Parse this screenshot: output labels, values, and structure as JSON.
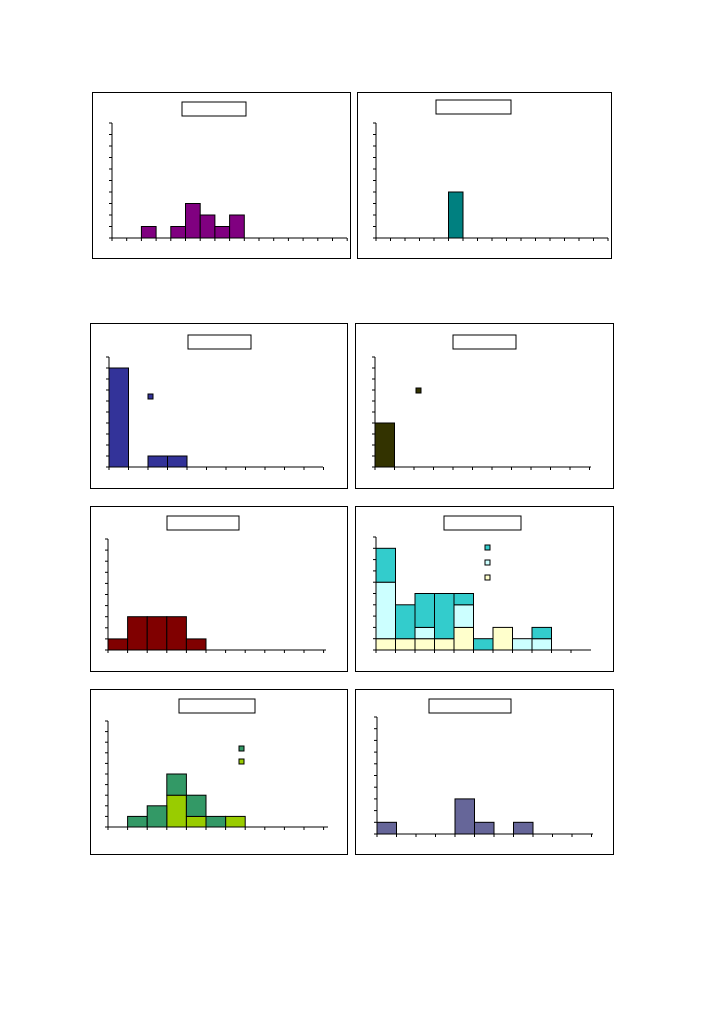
{
  "chart_data": [
    {
      "type": "bar",
      "bins": 16,
      "ylim": [
        0,
        10
      ],
      "series": [
        {
          "color": "#800080",
          "values": [
            0,
            0,
            1,
            0,
            1,
            3,
            2,
            1,
            2,
            0,
            0,
            0,
            0,
            0,
            0,
            0
          ]
        }
      ],
      "title_box": true,
      "legend": false
    },
    {
      "type": "bar",
      "bins": 16,
      "ylim": [
        0,
        10
      ],
      "series": [
        {
          "color": "#008080",
          "values": [
            0,
            0,
            0,
            0,
            0,
            4,
            0,
            0,
            0,
            0,
            0,
            0,
            0,
            0,
            0,
            0
          ]
        }
      ],
      "title_box": true,
      "legend": false
    },
    {
      "type": "bar",
      "bins": 11,
      "ylim": [
        0,
        10
      ],
      "series": [
        {
          "color": "#333399",
          "values": [
            9,
            0,
            1,
            1,
            0,
            0,
            0,
            0,
            0,
            0,
            0
          ]
        }
      ],
      "title_box": true,
      "legend": true,
      "legend_position": "top-left"
    },
    {
      "type": "bar",
      "bins": 11,
      "ylim": [
        0,
        10
      ],
      "series": [
        {
          "color": "#333300",
          "values": [
            4,
            0,
            0,
            0,
            0,
            0,
            0,
            0,
            0,
            0,
            0
          ]
        }
      ],
      "title_box": true,
      "legend": true,
      "legend_position": "top-left"
    },
    {
      "type": "bar",
      "bins": 11,
      "ylim": [
        0,
        10
      ],
      "series": [
        {
          "color": "#800000",
          "values": [
            1,
            3,
            3,
            3,
            1,
            0,
            0,
            0,
            0,
            0,
            0
          ]
        }
      ],
      "title_box": true,
      "legend": false
    },
    {
      "type": "bar",
      "stacked": true,
      "bins": 10,
      "ylim": [
        0,
        10
      ],
      "series": [
        {
          "color": "#FFFFCC",
          "values": [
            1,
            1,
            1,
            1,
            2,
            0,
            2,
            0,
            0,
            0
          ]
        },
        {
          "color": "#CCFFFF",
          "values": [
            5,
            0,
            1,
            0,
            2,
            0,
            0,
            1,
            1,
            0
          ]
        },
        {
          "color": "#33CCCC",
          "values": [
            3,
            3,
            3,
            4,
            1,
            1,
            0,
            0,
            1,
            0
          ]
        }
      ],
      "title_box": true,
      "legend": true,
      "legend_position": "top-right"
    },
    {
      "type": "bar",
      "stacked": true,
      "bins": 11,
      "ylim": [
        0,
        10
      ],
      "series": [
        {
          "color": "#99CC00",
          "values": [
            0,
            0,
            0,
            3,
            1,
            0,
            1,
            0,
            0,
            0,
            0
          ]
        },
        {
          "color": "#339966",
          "values": [
            0,
            1,
            2,
            2,
            2,
            1,
            0,
            0,
            0,
            0,
            0
          ]
        }
      ],
      "title_box": true,
      "legend": true,
      "legend_position": "top-right"
    },
    {
      "type": "bar",
      "bins": 11,
      "ylim": [
        0,
        10
      ],
      "series": [
        {
          "color": "#666699",
          "values": [
            1,
            0,
            0,
            0,
            3,
            1,
            0,
            1,
            0,
            0,
            0
          ]
        }
      ],
      "title_box": true,
      "legend": false
    }
  ]
}
